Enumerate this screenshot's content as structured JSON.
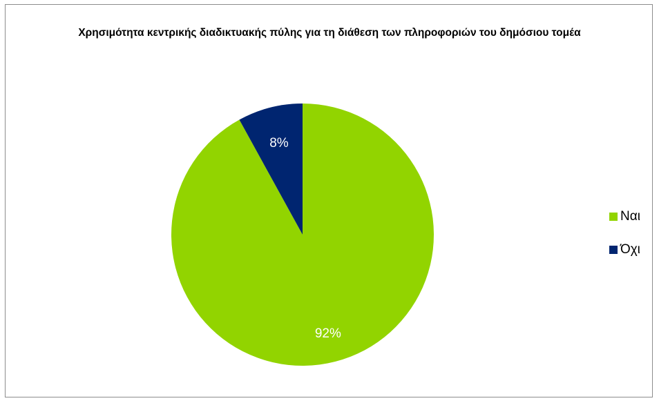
{
  "chart_data": {
    "type": "pie",
    "title": "Χρησιμότητα κεντρικής διαδικτυακής πύλης για τη διάθεση των πληροφοριών του δημόσιου τομέα",
    "categories": [
      "Ναι",
      "Όχι"
    ],
    "values": [
      92,
      8
    ],
    "value_labels": [
      "92%",
      "8%"
    ],
    "colors": [
      "#92d400",
      "#002570"
    ],
    "legend_position": "right"
  }
}
